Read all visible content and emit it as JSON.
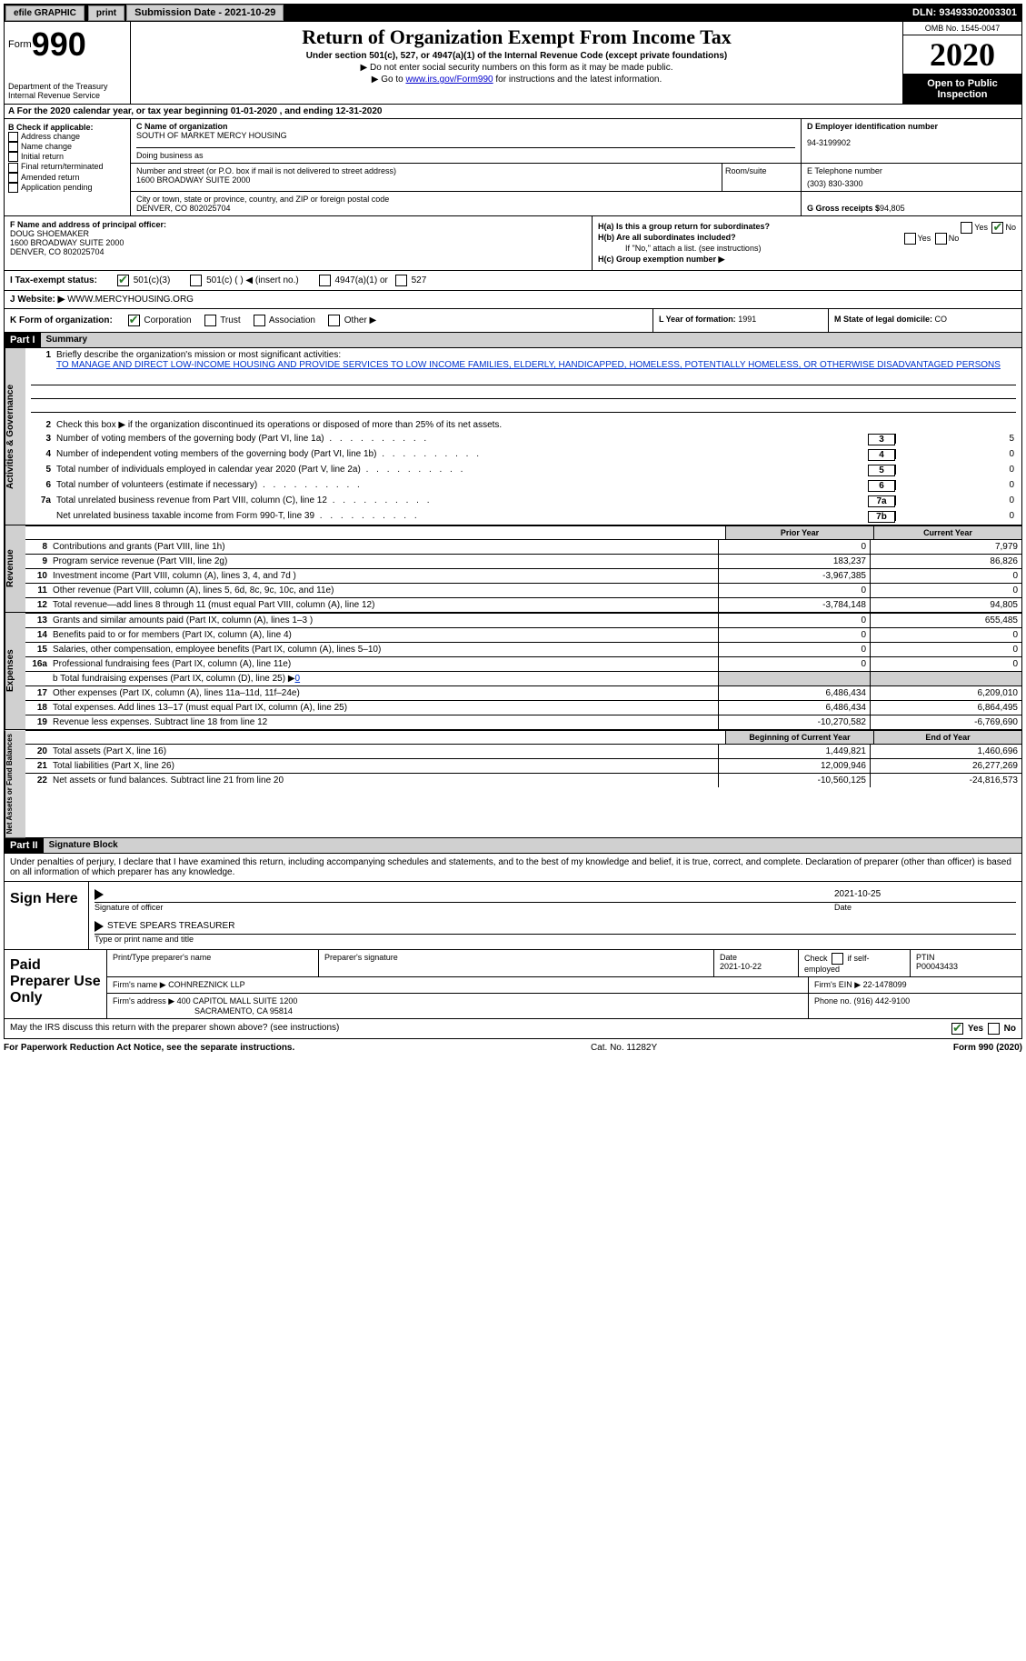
{
  "topbar": {
    "efile": "efile GRAPHIC",
    "print": "print",
    "submission_label": "Submission Date - 2021-10-29",
    "dln": "DLN: 93493302003301"
  },
  "header": {
    "form_label": "Form",
    "form_num": "990",
    "dept": "Department of the Treasury\nInternal Revenue Service",
    "title": "Return of Organization Exempt From Income Tax",
    "sub1": "Under section 501(c), 527, or 4947(a)(1) of the Internal Revenue Code (except private foundations)",
    "sub2_arrow": "▶ Do not enter social security numbers on this form as it may be made public.",
    "sub3_pre": "▶ Go to ",
    "sub3_link": "www.irs.gov/Form990",
    "sub3_post": " for instructions and the latest information.",
    "omb": "OMB No. 1545-0047",
    "year": "2020",
    "open": "Open to Public Inspection"
  },
  "row_A": "A For the 2020 calendar year, or tax year beginning 01-01-2020    , and ending 12-31-2020",
  "col_B": {
    "hdr": "B Check if applicable:",
    "items": [
      "Address change",
      "Name change",
      "Initial return",
      "Final return/terminated",
      "Amended return",
      "Application pending"
    ]
  },
  "org": {
    "c_lbl": "C Name of organization",
    "c_name": "SOUTH OF MARKET MERCY HOUSING",
    "dba_lbl": "Doing business as",
    "addr_lbl": "Number and street (or P.O. box if mail is not delivered to street address)",
    "room_lbl": "Room/suite",
    "addr": "1600 BROADWAY SUITE 2000",
    "city_lbl": "City or town, state or province, country, and ZIP or foreign postal code",
    "city": "DENVER, CO  802025704"
  },
  "right_col": {
    "d_lbl": "D Employer identification number",
    "d_val": "94-3199902",
    "e_lbl": "E Telephone number",
    "e_val": "(303) 830-3300",
    "g_lbl": "G Gross receipts $ ",
    "g_val": "94,805"
  },
  "F": {
    "lbl": "F Name and address of principal officer:",
    "name": "DOUG SHOEMAKER",
    "addr1": "1600 BROADWAY SUITE 2000",
    "addr2": "DENVER, CO  802025704"
  },
  "H": {
    "a_lbl": "H(a)  Is this a group return for subordinates?",
    "b_lbl": "H(b)  Are all subordinates included?",
    "b_note": "If \"No,\" attach a list. (see instructions)",
    "c_lbl": "H(c)  Group exemption number ▶",
    "yes": "Yes",
    "no": "No"
  },
  "I": {
    "lbl": "I    Tax-exempt status:",
    "opt1": "501(c)(3)",
    "opt2": "501(c) (  ) ◀ (insert no.)",
    "opt3": "4947(a)(1) or",
    "opt4": "527"
  },
  "J": {
    "lbl": "J   Website: ▶ ",
    "url": "WWW.MERCYHOUSING.ORG"
  },
  "K": {
    "lbl": "K Form of organization:",
    "opts": [
      "Corporation",
      "Trust",
      "Association",
      "Other ▶"
    ]
  },
  "L": {
    "lbl": "L Year of formation: ",
    "val": "1991"
  },
  "M": {
    "lbl": "M State of legal domicile: ",
    "val": "CO"
  },
  "part1": {
    "hdr": "Part I",
    "title": "Summary",
    "tab1": "Activities & Governance",
    "tab2": "Revenue",
    "tab3": "Expenses",
    "tab4": "Net Assets or Fund Balances",
    "l1_lbl": "Briefly describe the organization's mission or most significant activities:",
    "l1_txt": "TO MANAGE AND DIRECT LOW-INCOME HOUSING AND PROVIDE SERVICES TO LOW INCOME FAMILIES, ELDERLY, HANDICAPPED, HOMELESS, POTENTIALLY HOMELESS, OR OTHERWISE DISADVANTAGED PERSONS",
    "l2": "Check this box ▶      if the organization discontinued its operations or disposed of more than 25% of its net assets.",
    "lines_gov": [
      {
        "n": "3",
        "t": "Number of voting members of the governing body (Part VI, line 1a)",
        "box": "3",
        "v": "5"
      },
      {
        "n": "4",
        "t": "Number of independent voting members of the governing body (Part VI, line 1b)",
        "box": "4",
        "v": "0"
      },
      {
        "n": "5",
        "t": "Total number of individuals employed in calendar year 2020 (Part V, line 2a)",
        "box": "5",
        "v": "0"
      },
      {
        "n": "6",
        "t": "Total number of volunteers (estimate if necessary)",
        "box": "6",
        "v": "0"
      },
      {
        "n": "7a",
        "t": "Total unrelated business revenue from Part VIII, column (C), line 12",
        "box": "7a",
        "v": "0"
      },
      {
        "n": "",
        "t": "Net unrelated business taxable income from Form 990-T, line 39",
        "box": "7b",
        "v": "0"
      }
    ],
    "prior_hdr": "Prior Year",
    "curr_hdr": "Current Year",
    "rev_rows": [
      {
        "n": "8",
        "t": "Contributions and grants (Part VIII, line 1h)",
        "p": "0",
        "c": "7,979"
      },
      {
        "n": "9",
        "t": "Program service revenue (Part VIII, line 2g)",
        "p": "183,237",
        "c": "86,826"
      },
      {
        "n": "10",
        "t": "Investment income (Part VIII, column (A), lines 3, 4, and 7d )",
        "p": "-3,967,385",
        "c": "0"
      },
      {
        "n": "11",
        "t": "Other revenue (Part VIII, column (A), lines 5, 6d, 8c, 9c, 10c, and 11e)",
        "p": "0",
        "c": "0"
      },
      {
        "n": "12",
        "t": "Total revenue—add lines 8 through 11 (must equal Part VIII, column (A), line 12)",
        "p": "-3,784,148",
        "c": "94,805"
      }
    ],
    "exp_rows": [
      {
        "n": "13",
        "t": "Grants and similar amounts paid (Part IX, column (A), lines 1–3 )",
        "p": "0",
        "c": "655,485"
      },
      {
        "n": "14",
        "t": "Benefits paid to or for members (Part IX, column (A), line 4)",
        "p": "0",
        "c": "0"
      },
      {
        "n": "15",
        "t": "Salaries, other compensation, employee benefits (Part IX, column (A), lines 5–10)",
        "p": "0",
        "c": "0"
      },
      {
        "n": "16a",
        "t": "Professional fundraising fees (Part IX, column (A), line 11e)",
        "p": "0",
        "c": "0"
      }
    ],
    "l16b_pre": "b   Total fundraising expenses (Part IX, column (D), line 25) ▶",
    "l16b_val": "0",
    "exp_rows2": [
      {
        "n": "17",
        "t": "Other expenses (Part IX, column (A), lines 11a–11d, 11f–24e)",
        "p": "6,486,434",
        "c": "6,209,010"
      },
      {
        "n": "18",
        "t": "Total expenses. Add lines 13–17 (must equal Part IX, column (A), line 25)",
        "p": "6,486,434",
        "c": "6,864,495"
      },
      {
        "n": "19",
        "t": "Revenue less expenses. Subtract line 18 from line 12",
        "p": "-10,270,582",
        "c": "-6,769,690"
      }
    ],
    "begin_hdr": "Beginning of Current Year",
    "end_hdr": "End of Year",
    "net_rows": [
      {
        "n": "20",
        "t": "Total assets (Part X, line 16)",
        "p": "1,449,821",
        "c": "1,460,696"
      },
      {
        "n": "21",
        "t": "Total liabilities (Part X, line 26)",
        "p": "12,009,946",
        "c": "26,277,269"
      },
      {
        "n": "22",
        "t": "Net assets or fund balances. Subtract line 21 from line 20",
        "p": "-10,560,125",
        "c": "-24,816,573"
      }
    ]
  },
  "part2": {
    "hdr": "Part II",
    "title": "Signature Block",
    "decl": "Under penalties of perjury, I declare that I have examined this return, including accompanying schedules and statements, and to the best of my knowledge and belief, it is true, correct, and complete. Declaration of preparer (other than officer) is based on all information of which preparer has any knowledge.",
    "sign_here": "Sign Here",
    "sig_officer": "Signature of officer",
    "sig_date": "2021-10-25",
    "date_lbl": "Date",
    "officer_name": "STEVE SPEARS  TREASURER",
    "type_name": "Type or print name and title",
    "paid_prep": "Paid Preparer Use Only",
    "pt_name_lbl": "Print/Type preparer's name",
    "pt_sig_lbl": "Preparer's signature",
    "pt_date_lbl": "Date",
    "pt_date": "2021-10-22",
    "pt_check_lbl": "Check       if self-employed",
    "ptin_lbl": "PTIN",
    "ptin": "P00043433",
    "firm_name_lbl": "Firm's name    ▶ ",
    "firm_name": "COHNREZNICK LLP",
    "firm_ein_lbl": "Firm's EIN ▶ ",
    "firm_ein": "22-1478099",
    "firm_addr_lbl": "Firm's address ▶ ",
    "firm_addr1": "400 CAPITOL MALL SUITE 1200",
    "firm_addr2": "SACRAMENTO, CA  95814",
    "phone_lbl": "Phone no. ",
    "phone": "(916) 442-9100",
    "discuss": "May the IRS discuss this return with the preparer shown above? (see instructions)"
  },
  "footer": {
    "left": "For Paperwork Reduction Act Notice, see the separate instructions.",
    "mid": "Cat. No. 11282Y",
    "right": "Form 990 (2020)"
  }
}
